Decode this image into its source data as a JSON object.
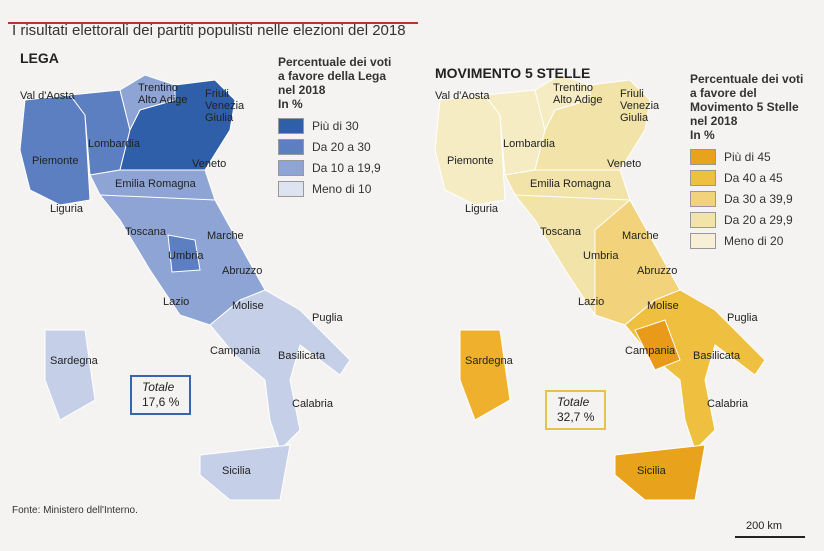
{
  "title": "I risultati elettorali dei partiti populisti nelle elezioni del 2018",
  "maps": [
    {
      "heading": "LEGA",
      "legend_title": [
        "Percentuale dei voti",
        "a favore della Lega",
        "nel 2018"
      ],
      "legend_unit": "In %",
      "legend": [
        "Più di 30",
        "Da 20 a 30",
        "Da 10 a 19,9",
        "Meno di 10"
      ],
      "total_label": "Totale",
      "total_value": "17,6 %"
    },
    {
      "heading": "MOVIMENTO 5 STELLE",
      "legend_title": [
        "Percentuale dei voti",
        "a favore del",
        "Movimento 5 Stelle",
        "nel 2018"
      ],
      "legend_unit": "In %",
      "legend": [
        "Più di 45",
        "Da 40 a 45",
        "Da 30 a 39,9",
        "Da 20 a 29,9",
        "Meno di 20"
      ],
      "total_label": "Totale",
      "total_value": "32,7 %"
    }
  ],
  "regions": [
    "Val d'Aosta",
    "Trentino Alto Adige",
    "Friuli Venezia Giulia",
    "Lombardia",
    "Piemonte",
    "Veneto",
    "Emilia Romagna",
    "Liguria",
    "Toscana",
    "Marche",
    "Umbria",
    "Abruzzo",
    "Lazio",
    "Molise",
    "Puglia",
    "Campania",
    "Basilicata",
    "Sardegna",
    "Calabria",
    "Sicilia"
  ],
  "source": "Fonte: Ministero dell'Interno.",
  "scale": "200 km"
}
